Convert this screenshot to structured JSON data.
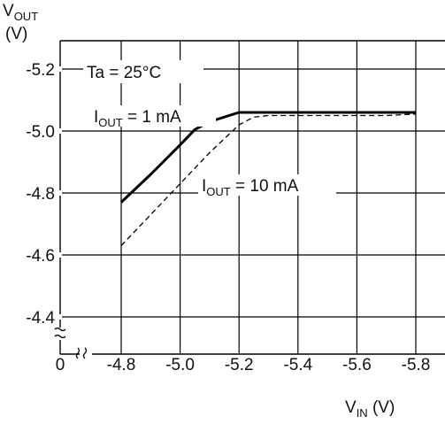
{
  "chart_data": {
    "type": "line",
    "ylabel_main": "V",
    "ylabel_sub": "OUT",
    "ylabel_unit": "(V)",
    "xlabel_main": "V",
    "xlabel_sub": "IN",
    "xlabel_unit": " (V)",
    "x_origin_label": "0",
    "x_ticks": [
      -4.8,
      -5.0,
      -5.2,
      -5.4,
      -5.6,
      -5.8
    ],
    "x_tick_labels": [
      "-4.8",
      "-5.0",
      "-5.2",
      "-5.4",
      "-5.6",
      "-5.8"
    ],
    "y_ticks": [
      -5.2,
      -5.0,
      -4.8,
      -4.6,
      -4.4
    ],
    "y_tick_labels": [
      "-5.2",
      "-5.0",
      "-4.8",
      "-4.6",
      "-4.4"
    ],
    "xlim": [
      -4.6,
      -5.8
    ],
    "ylim": [
      -4.3,
      -5.28
    ],
    "grid": true,
    "axis_breaks": true,
    "annotations": {
      "temperature": "Ta = 25°C",
      "series1_label_prefix": "I",
      "series1_label_sub": "OUT",
      "series1_label_suffix": " = 1 mA",
      "series2_label_prefix": "I",
      "series2_label_sub": "OUT",
      "series2_label_suffix": " = 10 mA"
    },
    "series": [
      {
        "style": "solid",
        "x": [
          -4.8,
          -4.9,
          -5.0,
          -5.05,
          -5.1,
          -5.2,
          -5.3,
          -5.4,
          -5.5,
          -5.6,
          -5.7,
          -5.8
        ],
        "y": [
          -4.77,
          -4.86,
          -4.955,
          -5.005,
          -5.03,
          -5.06,
          -5.06,
          -5.06,
          -5.06,
          -5.06,
          -5.06,
          -5.06
        ]
      },
      {
        "style": "dashed",
        "x": [
          -4.8,
          -4.9,
          -5.0,
          -5.1,
          -5.2,
          -5.25,
          -5.3,
          -5.4,
          -5.5,
          -5.6,
          -5.7,
          -5.8
        ],
        "y": [
          -4.63,
          -4.73,
          -4.83,
          -4.93,
          -5.02,
          -5.045,
          -5.05,
          -5.05,
          -5.05,
          -5.05,
          -5.05,
          -5.055
        ]
      }
    ]
  }
}
